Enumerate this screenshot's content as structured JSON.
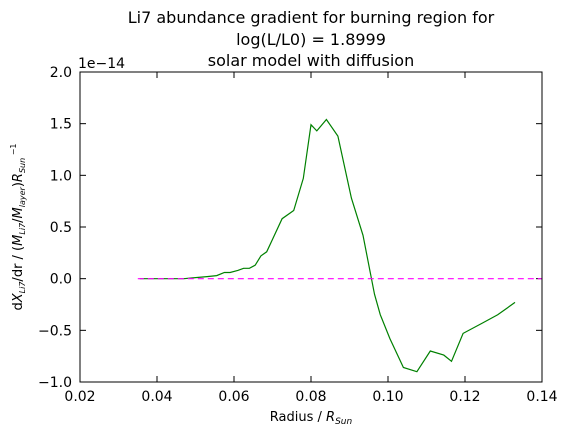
{
  "chart_data": {
    "type": "line",
    "title_lines": [
      "Li7 abundance gradient for burning region for",
      "log(L/L0) = 1.8999",
      "solar model with diffusion"
    ],
    "xlabel": "Radius / R_Sun",
    "ylabel": "dX_Li7/dr / (M_Li7/M_layer)R_Sun ^-1",
    "offset_text": "1e−14",
    "xlim": [
      0.02,
      0.14
    ],
    "ylim": [
      -1.0,
      2.0
    ],
    "y_scale_factor": 1e-14,
    "x_ticks": [
      "0.02",
      "0.04",
      "0.06",
      "0.08",
      "0.10",
      "0.12",
      "0.14"
    ],
    "y_ticks": [
      "−1.0",
      "−0.5",
      "0.0",
      "0.5",
      "1.0",
      "1.5",
      "2.0"
    ],
    "grid": false,
    "series": [
      {
        "color": "#008000",
        "style": "solid",
        "x": [
          0.0355,
          0.038,
          0.041,
          0.044,
          0.047,
          0.05,
          0.053,
          0.0555,
          0.0575,
          0.059,
          0.061,
          0.0625,
          0.064,
          0.0655,
          0.067,
          0.0685,
          0.07,
          0.0725,
          0.0755,
          0.078,
          0.08,
          0.0815,
          0.084,
          0.087,
          0.0905,
          0.0935,
          0.0965,
          0.098,
          0.1005,
          0.104,
          0.1075,
          0.111,
          0.1145,
          0.1165,
          0.1195,
          0.1245,
          0.1285,
          0.133
        ],
        "y": [
          0.0,
          0.0,
          0.0,
          0.0,
          0.0,
          0.01,
          0.02,
          0.03,
          0.06,
          0.06,
          0.08,
          0.1,
          0.1,
          0.13,
          0.22,
          0.26,
          0.38,
          0.58,
          0.66,
          0.97,
          1.49,
          1.43,
          1.54,
          1.38,
          0.78,
          0.42,
          -0.15,
          -0.35,
          -0.58,
          -0.86,
          -0.9,
          -0.7,
          -0.74,
          -0.8,
          -0.53,
          -0.43,
          -0.35,
          -0.23
        ]
      },
      {
        "color": "#ff00ff",
        "style": "dashed",
        "x": [
          0.035,
          0.14
        ],
        "y": [
          0.0,
          0.0
        ]
      }
    ]
  }
}
